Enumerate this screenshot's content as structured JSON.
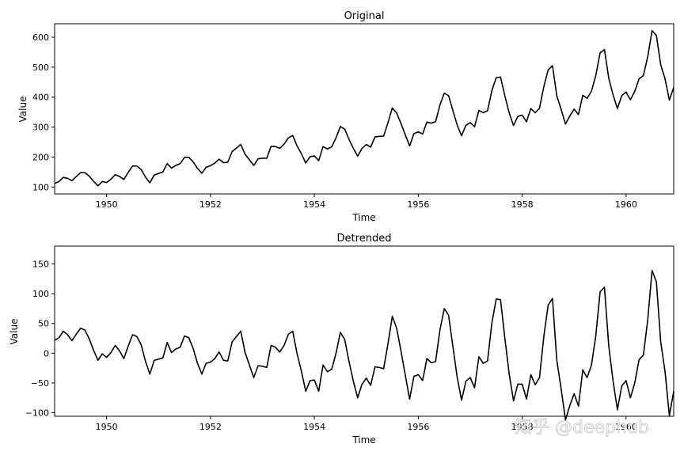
{
  "watermark": "知乎 @deephub",
  "chart_data": [
    {
      "type": "line",
      "title": "Original",
      "xlabel": "Time",
      "ylabel": "Value",
      "xlim": [
        1949.0,
        1960.9167
      ],
      "ylim": [
        77,
        645
      ],
      "xticks": [
        1950,
        1952,
        1954,
        1956,
        1958,
        1960
      ],
      "yticks": [
        100,
        200,
        300,
        400,
        500,
        600
      ],
      "grid": false,
      "series": [
        {
          "x_start": 1949.0,
          "x_step": 0.08333333,
          "values": [
            112,
            118,
            132,
            129,
            121,
            135,
            148,
            148,
            136,
            119,
            104,
            118,
            115,
            126,
            141,
            135,
            125,
            149,
            170,
            170,
            158,
            133,
            114,
            140,
            145,
            150,
            178,
            163,
            172,
            178,
            199,
            199,
            184,
            162,
            146,
            166,
            171,
            180,
            193,
            181,
            183,
            218,
            230,
            242,
            209,
            191,
            172,
            194,
            196,
            196,
            236,
            235,
            229,
            243,
            264,
            272,
            237,
            211,
            180,
            201,
            204,
            188,
            235,
            227,
            234,
            264,
            302,
            293,
            259,
            229,
            203,
            229,
            242,
            233,
            267,
            269,
            270,
            315,
            364,
            347,
            312,
            274,
            237,
            278,
            284,
            277,
            317,
            313,
            318,
            374,
            413,
            405,
            355,
            306,
            271,
            306,
            315,
            301,
            356,
            348,
            355,
            422,
            465,
            467,
            404,
            347,
            305,
            336,
            340,
            318,
            362,
            348,
            363,
            435,
            491,
            505,
            404,
            359,
            310,
            337,
            360,
            342,
            406,
            396,
            420,
            472,
            548,
            559,
            463,
            407,
            362,
            405,
            417,
            391,
            419,
            461,
            472,
            535,
            622,
            606,
            508,
            461,
            390,
            432
          ]
        }
      ]
    },
    {
      "type": "line",
      "title": "Detrended",
      "xlabel": "Time",
      "ylabel": "Value",
      "xlim": [
        1949.0,
        1960.9167
      ],
      "ylim": [
        -106,
        180
      ],
      "xticks": [
        1950,
        1952,
        1954,
        1956,
        1958,
        1960
      ],
      "yticks": [
        -100,
        -50,
        0,
        50,
        100,
        150
      ],
      "grid": false,
      "series": [
        {
          "x_start": 1949.0,
          "x_step": 0.08333333,
          "values": [
            22,
            26,
            37,
            31,
            21,
            32,
            42,
            39,
            24,
            5,
            -12,
            -1,
            -7,
            1,
            13,
            4,
            -9,
            12,
            31,
            28,
            14,
            -14,
            -35,
            -12,
            -10,
            -8,
            18,
            1,
            7,
            10,
            29,
            26,
            8,
            -17,
            -35,
            -17,
            -15,
            -9,
            2,
            -12,
            -13,
            19,
            28,
            37,
            1,
            -20,
            -41,
            -21,
            -22,
            -24,
            13,
            10,
            2,
            13,
            32,
            37,
            -1,
            -30,
            -64,
            -46,
            -45,
            -64,
            -20,
            -31,
            -27,
            0,
            35,
            23,
            -14,
            -47,
            -75,
            -52,
            -42,
            -54,
            -23,
            -24,
            -26,
            16,
            62,
            42,
            4,
            -37,
            -77,
            -39,
            -36,
            -46,
            -9,
            -16,
            -14,
            39,
            75,
            64,
            11,
            -41,
            -79,
            -47,
            -41,
            -58,
            -6,
            -17,
            -13,
            51,
            91,
            90,
            25,
            -35,
            -80,
            -52,
            -52,
            -77,
            -36,
            -53,
            -41,
            28,
            81,
            92,
            -12,
            -60,
            -112,
            -88,
            -68,
            -89,
            -28,
            -41,
            -20,
            29,
            103,
            111,
            12,
            -47,
            -95,
            -55,
            -46,
            -75,
            -50,
            -11,
            -3,
            56,
            139,
            120,
            19,
            -31,
            -105,
            -64
          ]
        }
      ]
    }
  ]
}
